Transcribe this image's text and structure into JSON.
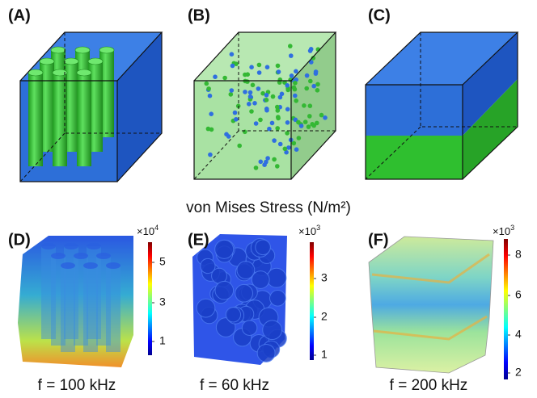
{
  "panels": [
    {
      "label": "(A)"
    },
    {
      "label": "(B)"
    },
    {
      "label": "(C)"
    }
  ],
  "stress_title": "von Mises Stress (N/m²)",
  "results": [
    {
      "label": "(D)",
      "multiplier": "×10",
      "exponent": 4,
      "ticks": [
        5,
        3,
        1
      ],
      "caption": "f = 100 kHz"
    },
    {
      "label": "(E)",
      "multiplier": "×10",
      "exponent": 3,
      "ticks": [
        3,
        2,
        1
      ],
      "caption": "f = 60 kHz"
    },
    {
      "label": "(F)",
      "multiplier": "×10",
      "exponent": 3,
      "ticks": [
        8,
        6,
        4,
        2
      ],
      "caption": "f = 200 kHz"
    }
  ]
}
